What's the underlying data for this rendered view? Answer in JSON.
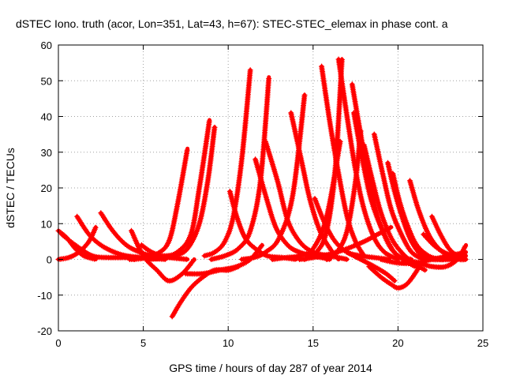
{
  "chart_data": {
    "type": "line",
    "title": "dSTEC Iono. truth (acor, Lon=351, Lat=43, h=67): STEC-STEC_elemax in phase cont. a",
    "xlabel": "GPS time / hours of day 287 of year 2014",
    "ylabel": "dSTEC  / TECUs",
    "xlim": [
      0,
      25
    ],
    "ylim": [
      -20,
      60
    ],
    "xticks": [
      0,
      5,
      10,
      15,
      20,
      25
    ],
    "yticks": [
      -20,
      -10,
      0,
      10,
      20,
      30,
      40,
      50,
      60
    ],
    "grid": true,
    "legend": "none",
    "marker": "plus",
    "color": "#ff0000",
    "series": [
      {
        "x": [
          0.0,
          0.5,
          1.0,
          1.5,
          2.2
        ],
        "y": [
          8,
          6,
          3,
          1,
          0
        ]
      },
      {
        "x": [
          0.0,
          0.6,
          1.2,
          1.8,
          2.2
        ],
        "y": [
          0,
          0.5,
          2,
          5,
          9
        ]
      },
      {
        "x": [
          1.1,
          1.8,
          2.5,
          3.3,
          4.0,
          5.0,
          6.3
        ],
        "y": [
          12,
          7,
          4,
          2,
          1,
          0.5,
          0
        ]
      },
      {
        "x": [
          0.2,
          1.0,
          2.0,
          3.0,
          4.0,
          4.5
        ],
        "y": [
          7,
          4,
          1,
          0.5,
          0.5,
          0
        ]
      },
      {
        "x": [
          2.5,
          3.2,
          4.0,
          4.8,
          5.5,
          6.5,
          7.6
        ],
        "y": [
          13,
          8,
          4,
          2,
          1,
          0.5,
          0
        ]
      },
      {
        "x": [
          4.2,
          5.0,
          5.8,
          6.5,
          7.0,
          7.6
        ],
        "y": [
          0,
          0.3,
          1.5,
          5,
          15,
          31
        ]
      },
      {
        "x": [
          4.9,
          5.5,
          6.2,
          7.0,
          7.8,
          8.3,
          8.9
        ],
        "y": [
          4,
          2,
          1,
          2,
          7,
          20,
          39
        ]
      },
      {
        "x": [
          5.3,
          6.0,
          6.8,
          7.6,
          8.3,
          8.8,
          9.2
        ],
        "y": [
          0,
          0.3,
          1,
          3,
          10,
          22,
          37
        ]
      },
      {
        "x": [
          4.3,
          5.0,
          5.8,
          6.5,
          7.3,
          8.0
        ],
        "y": [
          8,
          1,
          -3,
          -6,
          -4,
          0
        ]
      },
      {
        "x": [
          6.7,
          7.2,
          7.8,
          8.5,
          9.2,
          10.0,
          10.6
        ],
        "y": [
          -16,
          -12,
          -8,
          -5,
          -3,
          -3,
          -2
        ]
      },
      {
        "x": [
          7.5,
          8.5,
          9.5,
          10.5,
          11.3,
          12.0
        ],
        "y": [
          -4,
          -4,
          -3,
          -2,
          0,
          4
        ]
      },
      {
        "x": [
          8.6,
          9.2,
          9.8,
          10.3,
          10.8,
          11.3
        ],
        "y": [
          1,
          2,
          5,
          12,
          28,
          53
        ]
      },
      {
        "x": [
          10.1,
          10.5,
          11.0,
          11.6,
          12.3,
          13.2,
          14.0
        ],
        "y": [
          19,
          12,
          6,
          3,
          1,
          0.5,
          0
        ]
      },
      {
        "x": [
          9.0,
          9.8,
          10.6,
          11.3,
          11.9,
          12.4
        ],
        "y": [
          0,
          1,
          3,
          8,
          22,
          51
        ]
      },
      {
        "x": [
          10.8,
          11.5,
          12.2,
          13.0,
          13.8,
          14.5
        ],
        "y": [
          0,
          0.5,
          2,
          6,
          18,
          46
        ]
      },
      {
        "x": [
          11.6,
          12.2,
          12.8,
          13.5,
          14.2,
          15.0,
          16.0
        ],
        "y": [
          28,
          18,
          9,
          4,
          2,
          1,
          0
        ]
      },
      {
        "x": [
          12.2,
          12.9,
          13.5,
          14.2,
          15.0,
          16.0,
          17.0
        ],
        "y": [
          33,
          22,
          11,
          5,
          2,
          1,
          0
        ]
      },
      {
        "x": [
          13.7,
          14.3,
          14.8,
          15.4,
          16.0,
          16.5
        ],
        "y": [
          41,
          28,
          17,
          8,
          3,
          0
        ]
      },
      {
        "x": [
          12.6,
          13.4,
          14.2,
          15.0,
          15.8,
          16.6
        ],
        "y": [
          0,
          0.5,
          1,
          3,
          12,
          33
        ]
      },
      {
        "x": [
          15.1,
          15.7,
          16.3,
          17.0,
          17.8,
          18.6,
          19.5
        ],
        "y": [
          17,
          10,
          5,
          2,
          1,
          0.5,
          0
        ]
      },
      {
        "x": [
          15.5,
          16.0,
          16.5,
          17.0,
          17.5,
          18.0
        ],
        "y": [
          54,
          38,
          24,
          12,
          5,
          1
        ]
      },
      {
        "x": [
          14.5,
          15.2,
          15.8,
          16.3,
          16.7
        ],
        "y": [
          0,
          2,
          8,
          25,
          56
        ]
      },
      {
        "x": [
          16.5,
          17.0,
          17.5,
          18.0,
          18.6,
          19.2,
          20.0
        ],
        "y": [
          56,
          40,
          25,
          14,
          6,
          2,
          0
        ]
      },
      {
        "x": [
          15.8,
          16.4,
          17.0,
          17.5,
          17.8
        ],
        "y": [
          0,
          2,
          8,
          22,
          36
        ]
      },
      {
        "x": [
          17.3,
          17.8,
          18.3,
          18.8,
          19.4,
          20.0,
          20.8
        ],
        "y": [
          49,
          35,
          22,
          12,
          5,
          1,
          0
        ]
      },
      {
        "x": [
          17.4,
          17.9,
          18.4,
          19.0,
          19.6,
          20.3,
          21.0
        ],
        "y": [
          41,
          28,
          17,
          9,
          3,
          0,
          -2
        ]
      },
      {
        "x": [
          18.0,
          18.5,
          19.0,
          19.6,
          20.2,
          20.9,
          21.6
        ],
        "y": [
          32,
          22,
          13,
          6,
          2,
          -1,
          -3
        ]
      },
      {
        "x": [
          18.6,
          19.1,
          19.6,
          20.2,
          20.8,
          21.5
        ],
        "y": [
          35,
          24,
          14,
          7,
          2,
          0
        ]
      },
      {
        "x": [
          19.4,
          19.8,
          20.3,
          20.8,
          21.4,
          22.0,
          22.7
        ],
        "y": [
          27,
          19,
          11,
          5,
          1,
          0,
          0
        ]
      },
      {
        "x": [
          19.7,
          20.1,
          20.6,
          21.1,
          21.8,
          22.5,
          23.2
        ],
        "y": [
          24,
          16,
          9,
          4,
          1,
          0,
          0
        ]
      },
      {
        "x": [
          20.7,
          21.2,
          21.8,
          22.4,
          23.0,
          23.6,
          24.0
        ],
        "y": [
          22,
          14,
          7,
          3,
          1,
          0,
          0
        ]
      },
      {
        "x": [
          22.0,
          22.5,
          23.0,
          23.5,
          24.0
        ],
        "y": [
          12,
          7,
          3,
          1,
          0
        ]
      },
      {
        "x": [
          14.2,
          15.0,
          16.0,
          17.0,
          18.0,
          18.8,
          19.6
        ],
        "y": [
          0,
          0.5,
          1.5,
          3,
          5,
          7,
          9
        ]
      },
      {
        "x": [
          18.3,
          19.0,
          19.6,
          20.0,
          20.5,
          21.0,
          21.5
        ],
        "y": [
          -2,
          -5,
          -7,
          -8,
          -7,
          -4,
          0
        ]
      },
      {
        "x": [
          17.0,
          17.8,
          18.6,
          19.3,
          19.8
        ],
        "y": [
          2,
          0,
          -2,
          -4,
          -6
        ]
      },
      {
        "x": [
          20.5,
          21.2,
          22.0,
          22.8,
          23.5,
          24.0
        ],
        "y": [
          0,
          -1,
          -2,
          -2,
          0,
          4
        ]
      },
      {
        "x": [
          21.5,
          22.1,
          22.7,
          23.3,
          24.0
        ],
        "y": [
          7,
          4,
          2,
          1,
          1
        ]
      },
      {
        "x": [
          19.0,
          20.0,
          21.0,
          22.0,
          23.0,
          24.0
        ],
        "y": [
          0,
          -1,
          -1,
          0,
          1,
          2
        ]
      }
    ]
  }
}
